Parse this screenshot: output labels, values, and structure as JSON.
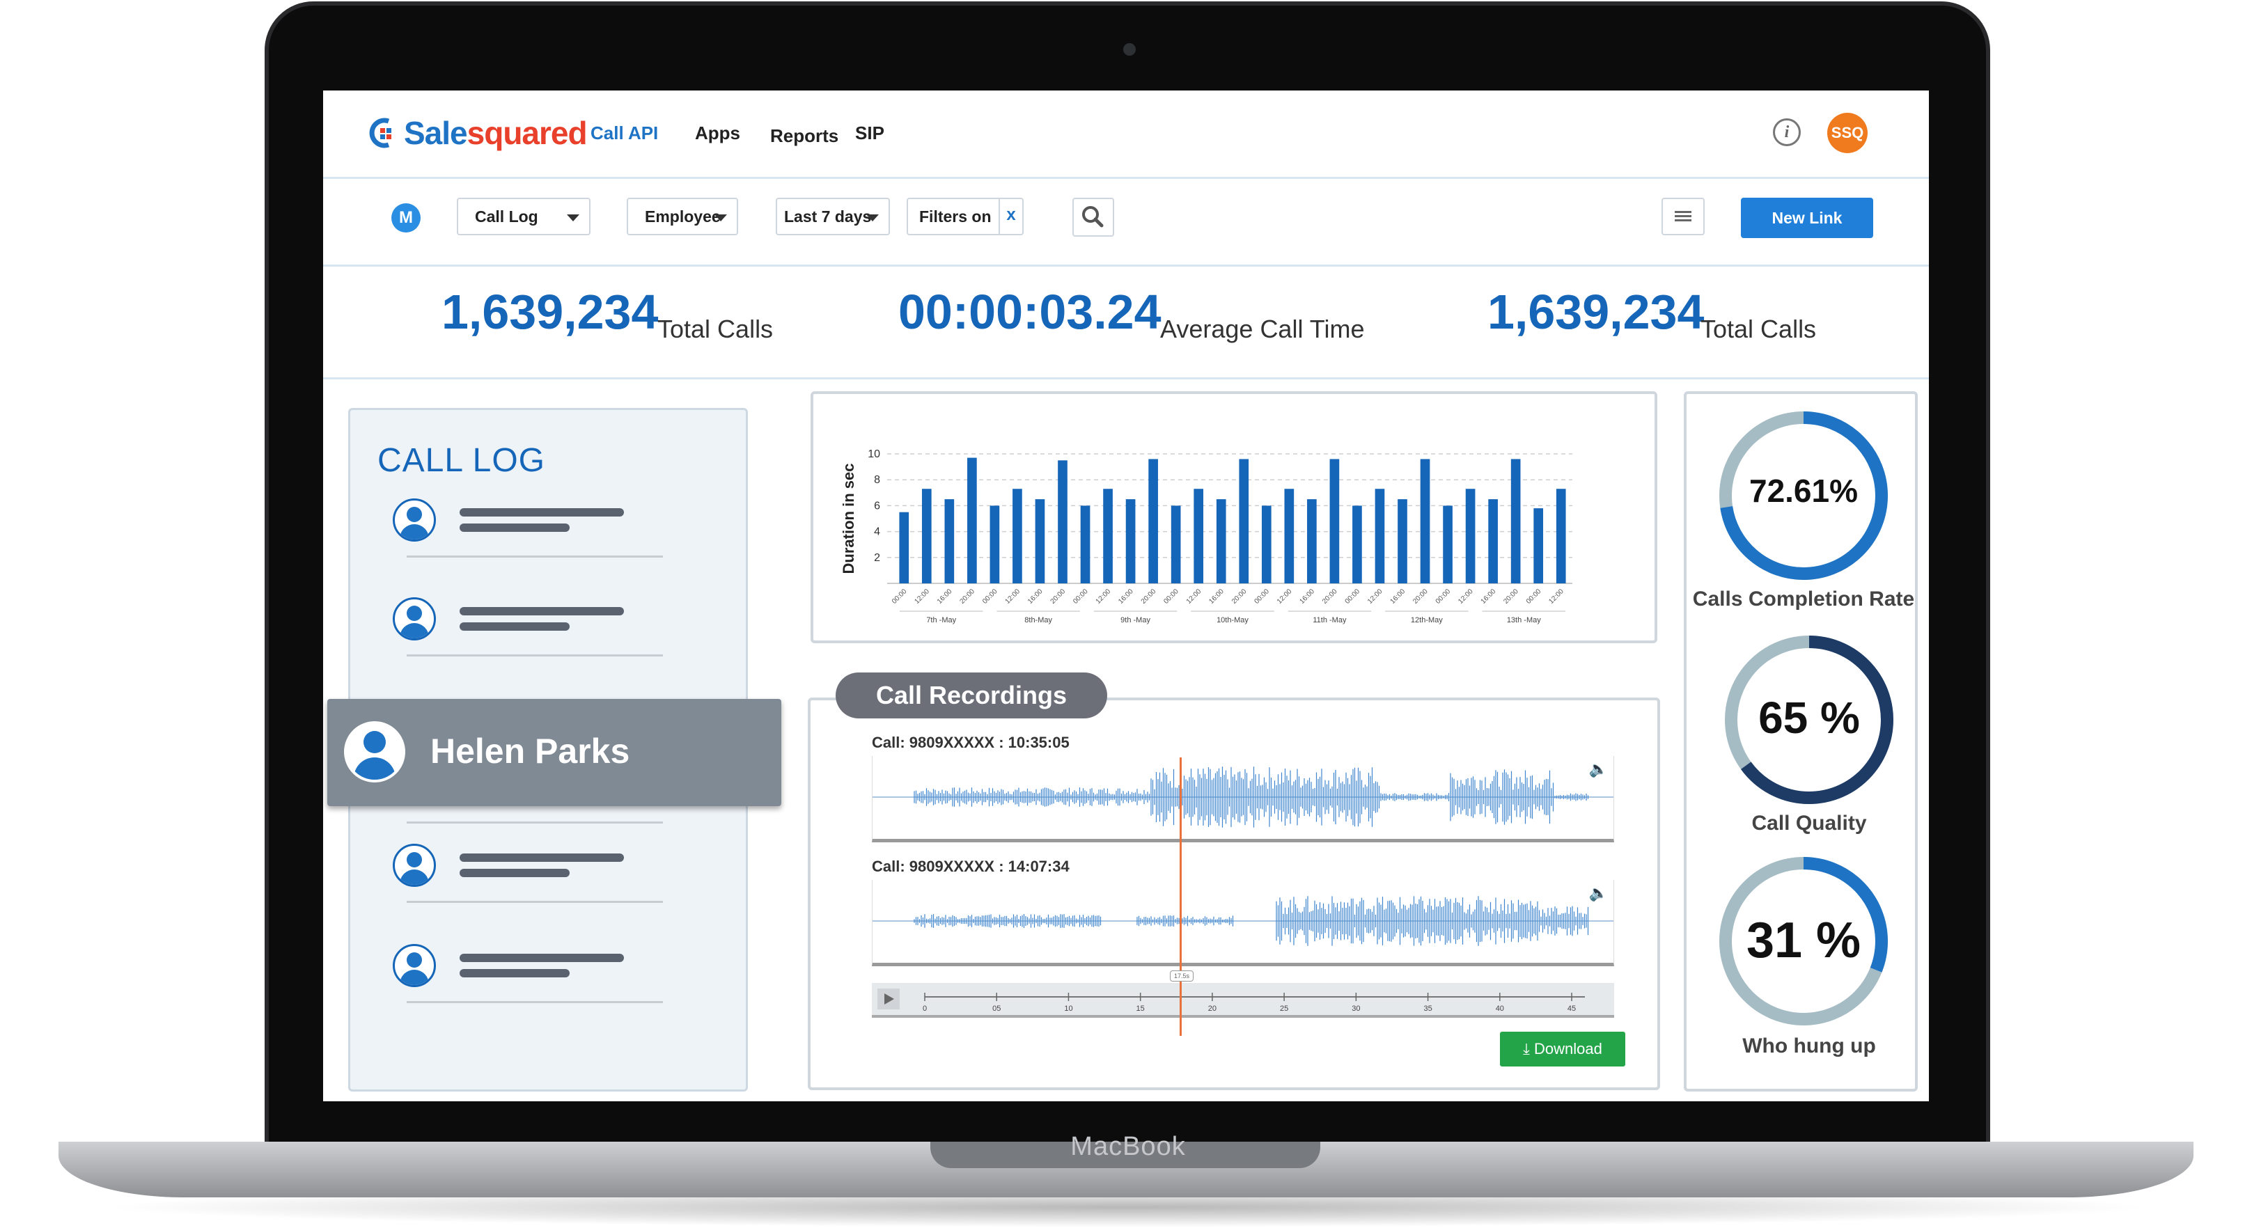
{
  "brand": {
    "logo_part1": "Sale",
    "logo_part2": "squared",
    "device_label": "MacBook"
  },
  "nav": {
    "call_api": "Call API",
    "apps": "Apps",
    "reports": "Reports",
    "sip": "SIP"
  },
  "header": {
    "info_icon": "i",
    "avatar_initials": "SSQ"
  },
  "toolbar": {
    "m_badge": "M",
    "call_log_select": "Call Log",
    "employee_select": "Employee",
    "days_select": "Last 7 days",
    "filter_label": "Filters on",
    "filter_clear": "x",
    "new_link": "New Link"
  },
  "stats": [
    {
      "value": "1,639,234",
      "label": "Total Calls"
    },
    {
      "value": "00:00:03.24",
      "label": "Average Call Time"
    },
    {
      "value": "1,639,234",
      "label": "Total Calls"
    }
  ],
  "call_log": {
    "title": "CALL LOG",
    "selected_name": "Helen Parks"
  },
  "chart_data": {
    "type": "bar",
    "ylabel": "Duration in sec",
    "yticks": [
      2,
      4,
      6,
      8,
      10
    ],
    "ylim": [
      0,
      10
    ],
    "group_labels": [
      "7th -May",
      "8th-May",
      "9th -May",
      "10th-May",
      "11th -May",
      "12th-May",
      "13th -May"
    ],
    "time_ticks": [
      "00:00",
      "12:00",
      "16:00",
      "20:00"
    ],
    "values": [
      5.5,
      7.3,
      6.5,
      9.7,
      6.0,
      7.3,
      6.5,
      9.5,
      6.0,
      7.3,
      6.5,
      9.6,
      6.0,
      7.3,
      6.5,
      9.6,
      6.0,
      7.3,
      6.5,
      9.6,
      6.0,
      7.3,
      6.5,
      9.6,
      6.0,
      7.3,
      6.5,
      9.6,
      5.8,
      7.3
    ],
    "grid": true,
    "color": "#1565b8"
  },
  "recordings": {
    "title": "Call Recordings",
    "calls": [
      {
        "label": "Call: 9809XXXXX : 10:35:05"
      },
      {
        "label": "Call: 9809XXXXX : 14:07:34"
      }
    ],
    "timeline_ticks": [
      "0",
      "05",
      "10",
      "15",
      "20",
      "25",
      "30",
      "35",
      "40",
      "45"
    ],
    "playhead_label": "17.5s",
    "download_label": "Download"
  },
  "metrics": [
    {
      "value": "72.61%",
      "label": "Calls Completion Rate",
      "fraction": 0.7261,
      "color": "#1e73c4",
      "track": "#a6bcc4"
    },
    {
      "value": "65 %",
      "label": "Call Quality",
      "fraction": 0.65,
      "color": "#1e3b66",
      "track": "#a6bcc4"
    },
    {
      "value": "31 %",
      "label": "Who hung up",
      "fraction": 0.31,
      "color": "#1e73c4",
      "track": "#a6bcc4"
    }
  ]
}
